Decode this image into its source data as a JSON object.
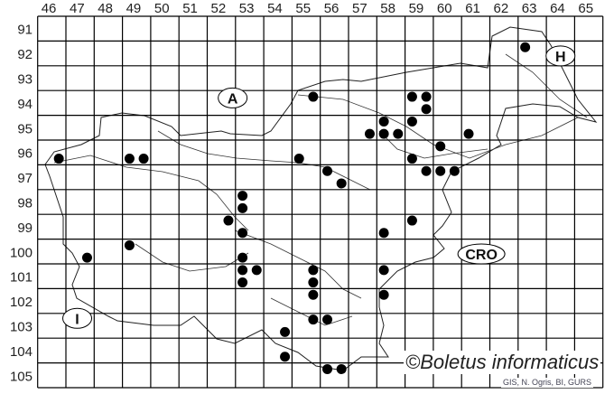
{
  "map": {
    "columns": [
      "46",
      "47",
      "48",
      "49",
      "50",
      "51",
      "52",
      "53",
      "54",
      "55",
      "56",
      "57",
      "58",
      "59",
      "60",
      "61",
      "62",
      "63",
      "64",
      "65"
    ],
    "rows": [
      "91",
      "92",
      "93",
      "94",
      "95",
      "96",
      "97",
      "98",
      "99",
      "100",
      "101",
      "102",
      "103",
      "104",
      "105"
    ],
    "countries": [
      {
        "label": "A",
        "cell": [
          52.9,
          94.3
        ]
      },
      {
        "label": "H",
        "cell": [
          64.5,
          92.6
        ]
      },
      {
        "label": "CRO",
        "cell": [
          61.7,
          100.6
        ]
      },
      {
        "label": "I",
        "cell": [
          47.4,
          103.2
        ]
      }
    ],
    "records": [
      [
        46.75,
        96.75
      ],
      [
        49.25,
        96.75
      ],
      [
        49.75,
        96.75
      ],
      [
        53.25,
        98.25
      ],
      [
        53.25,
        98.75
      ],
      [
        52.75,
        99.25
      ],
      [
        53.25,
        99.75
      ],
      [
        53.25,
        100.75
      ],
      [
        53.25,
        101.25
      ],
      [
        53.75,
        101.25
      ],
      [
        53.25,
        101.75
      ],
      [
        49.25,
        100.25
      ],
      [
        47.75,
        100.75
      ],
      [
        54.75,
        103.75
      ],
      [
        54.75,
        104.75
      ],
      [
        55.75,
        94.25
      ],
      [
        63.25,
        92.25
      ],
      [
        59.25,
        94.25
      ],
      [
        59.75,
        94.25
      ],
      [
        59.75,
        94.75
      ],
      [
        59.25,
        95.25
      ],
      [
        58.25,
        95.25
      ],
      [
        57.75,
        95.75
      ],
      [
        58.25,
        95.75
      ],
      [
        58.75,
        95.75
      ],
      [
        61.25,
        95.75
      ],
      [
        60.25,
        96.25
      ],
      [
        59.25,
        96.75
      ],
      [
        59.75,
        97.25
      ],
      [
        60.25,
        97.25
      ],
      [
        60.75,
        97.25
      ],
      [
        56.25,
        97.25
      ],
      [
        56.75,
        97.75
      ],
      [
        55.25,
        96.75
      ],
      [
        59.25,
        99.25
      ],
      [
        58.25,
        99.75
      ],
      [
        58.25,
        101.25
      ],
      [
        58.25,
        102.25
      ],
      [
        55.75,
        101.25
      ],
      [
        55.75,
        101.75
      ],
      [
        55.75,
        102.25
      ],
      [
        55.75,
        103.25
      ],
      [
        56.25,
        103.25
      ],
      [
        56.25,
        105.25
      ],
      [
        56.75,
        105.25
      ]
    ],
    "dot_color": "#000000"
  },
  "copyright": "©Boletus informaticus",
  "credit": "GIS, N. Ogris, BI, GURS"
}
